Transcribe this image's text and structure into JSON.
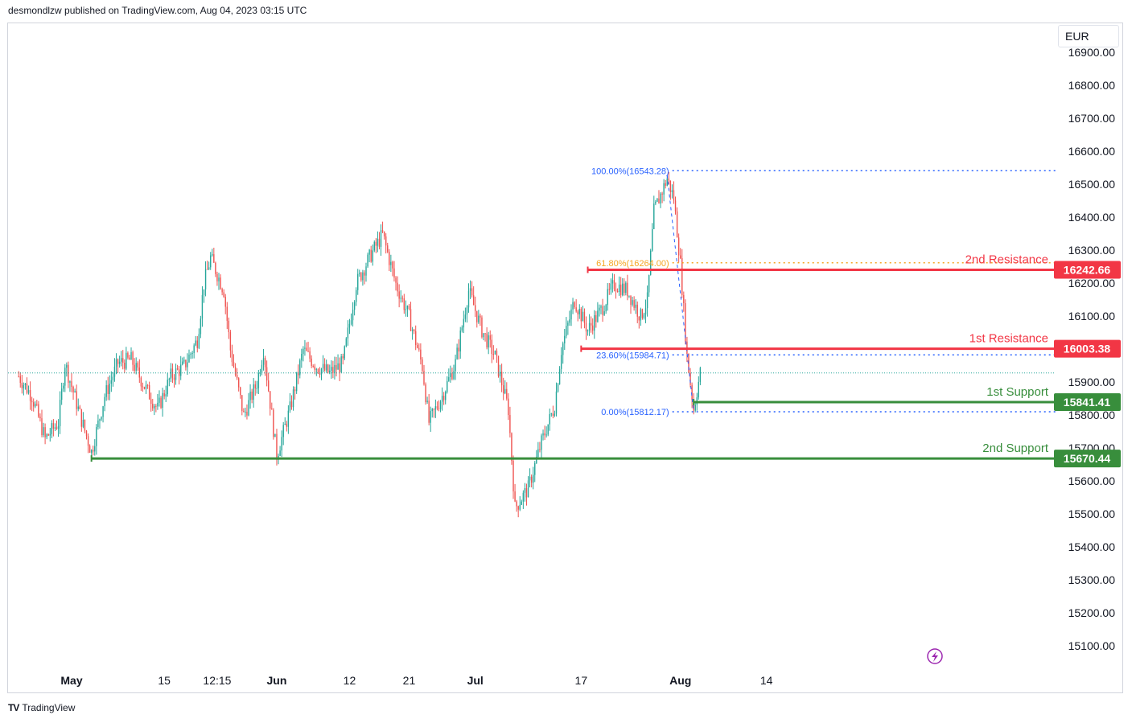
{
  "header": {
    "publisher_line": "desmondlzw published on TradingView.com, Aug 04, 2023 03:15 UTC"
  },
  "currency": "EUR",
  "footer": {
    "brand": "TradingView",
    "logo": "TV"
  },
  "colors": {
    "up": "#26a69a",
    "down": "#ef5350",
    "resistance": "#f23645",
    "support": "#388e3c",
    "fib": "#2962ff",
    "fib_gold": "#f5a623",
    "icon": "#9c27b0"
  },
  "icon": "lightning-icon",
  "chart_data": {
    "type": "candlestick",
    "y_axis": {
      "min": 15000,
      "max": 16950,
      "ticks": [
        15100,
        15200,
        15300,
        15400,
        15500,
        15600,
        15700,
        15800,
        15900,
        16000,
        16100,
        16200,
        16300,
        16400,
        16500,
        16600,
        16700,
        16800,
        16900
      ],
      "tick_labels": [
        "15100.00",
        "15200.00",
        "15300.00",
        "15400.00",
        "15500.00",
        "15600.00",
        "15700.00",
        "15800.00",
        "15900.00",
        "16000.00",
        "16100.00",
        "16200.00",
        "16300.00",
        "16400.00",
        "16500.00",
        "16600.00",
        "16700.00",
        "16800.00",
        "16900.00"
      ]
    },
    "x_axis": {
      "ticks": [
        {
          "label": "May",
          "date": "2023-05-01",
          "bold": true
        },
        {
          "label": "15",
          "date": "2023-05-15",
          "bold": false
        },
        {
          "label": "12:15",
          "date": "2023-05-23",
          "bold": false
        },
        {
          "label": "Jun",
          "date": "2023-06-01",
          "bold": true
        },
        {
          "label": "12",
          "date": "2023-06-12",
          "bold": false
        },
        {
          "label": "21",
          "date": "2023-06-21",
          "bold": false
        },
        {
          "label": "Jul",
          "date": "2023-07-01",
          "bold": true
        },
        {
          "label": "17",
          "date": "2023-07-17",
          "bold": false
        },
        {
          "label": "Aug",
          "date": "2023-08-01",
          "bold": true
        },
        {
          "label": "14",
          "date": "2023-08-14",
          "bold": false
        }
      ]
    },
    "last_price": 15930,
    "price_path": [
      [
        "2023-04-23",
        15920
      ],
      [
        "2023-04-25",
        15860
      ],
      [
        "2023-04-27",
        15730
      ],
      [
        "2023-04-29",
        15780
      ],
      [
        "2023-04-30",
        15960
      ],
      [
        "2023-05-02",
        15820
      ],
      [
        "2023-05-04",
        15690
      ],
      [
        "2023-05-06",
        15860
      ],
      [
        "2023-05-08",
        15960
      ],
      [
        "2023-05-10",
        15970
      ],
      [
        "2023-05-12",
        15890
      ],
      [
        "2023-05-14",
        15820
      ],
      [
        "2023-05-16",
        15920
      ],
      [
        "2023-05-18",
        15950
      ],
      [
        "2023-05-20",
        16030
      ],
      [
        "2023-05-21",
        16200
      ],
      [
        "2023-05-22",
        16280
      ],
      [
        "2023-05-24",
        16180
      ],
      [
        "2023-05-25",
        16000
      ],
      [
        "2023-05-27",
        15800
      ],
      [
        "2023-05-29",
        15900
      ],
      [
        "2023-05-30",
        16000
      ],
      [
        "2023-06-01",
        15680
      ],
      [
        "2023-06-03",
        15820
      ],
      [
        "2023-06-05",
        16000
      ],
      [
        "2023-06-07",
        15950
      ],
      [
        "2023-06-09",
        15930
      ],
      [
        "2023-06-11",
        15960
      ],
      [
        "2023-06-13",
        16200
      ],
      [
        "2023-06-15",
        16280
      ],
      [
        "2023-06-17",
        16350
      ],
      [
        "2023-06-19",
        16200
      ],
      [
        "2023-06-21",
        16100
      ],
      [
        "2023-06-23",
        15950
      ],
      [
        "2023-06-24",
        15780
      ],
      [
        "2023-06-26",
        15860
      ],
      [
        "2023-06-28",
        15960
      ],
      [
        "2023-06-30",
        16180
      ],
      [
        "2023-07-02",
        16060
      ],
      [
        "2023-07-04",
        15980
      ],
      [
        "2023-07-06",
        15820
      ],
      [
        "2023-07-07",
        15520
      ],
      [
        "2023-07-09",
        15580
      ],
      [
        "2023-07-11",
        15720
      ],
      [
        "2023-07-13",
        15830
      ],
      [
        "2023-07-14",
        16000
      ],
      [
        "2023-07-16",
        16150
      ],
      [
        "2023-07-18",
        16060
      ],
      [
        "2023-07-20",
        16120
      ],
      [
        "2023-07-22",
        16200
      ],
      [
        "2023-07-24",
        16180
      ],
      [
        "2023-07-26",
        16100
      ],
      [
        "2023-07-27",
        16150
      ],
      [
        "2023-07-28",
        16420
      ],
      [
        "2023-07-30",
        16520
      ],
      [
        "2023-07-31",
        16460
      ],
      [
        "2023-08-01",
        16260
      ],
      [
        "2023-08-02",
        15980
      ],
      [
        "2023-08-03",
        15820
      ],
      [
        "2023-08-04",
        15930
      ]
    ],
    "fibonacci": [
      {
        "label": "100.00%(16543.28)",
        "price": 16543.28,
        "color": "#2962ff"
      },
      {
        "label": "61.80%(16264.00)",
        "price": 16264.0,
        "color": "#f5a623"
      },
      {
        "label": "23.60%(15984.71)",
        "price": 15984.71,
        "color": "#2962ff"
      },
      {
        "label": "0.00%(15812.17)",
        "price": 15812.17,
        "color": "#2962ff"
      }
    ],
    "fib_start_date": "2023-08-01",
    "fib_trend": [
      [
        "2023-07-30",
        16530
      ],
      [
        "2023-08-03",
        15812
      ]
    ],
    "levels": [
      {
        "name": "2nd Resistance",
        "value": 16242.66,
        "value_label": "16242.66",
        "color": "#f23645",
        "from_date": "2023-07-18"
      },
      {
        "name": "1st Resistance",
        "value": 16003.38,
        "value_label": "16003.38",
        "color": "#f23645",
        "from_date": "2023-07-17"
      },
      {
        "name": "1st Support",
        "value": 15841.41,
        "value_label": "15841.41",
        "color": "#388e3c",
        "from_date": "2023-08-03"
      },
      {
        "name": "2nd Support",
        "value": 15670.44,
        "value_label": "15670.44",
        "color": "#388e3c",
        "from_date": "2023-05-04"
      }
    ]
  }
}
